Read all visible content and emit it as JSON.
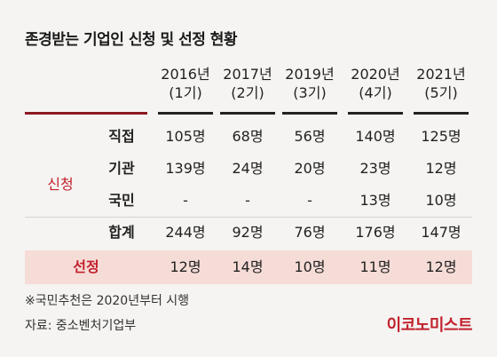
{
  "title": "존경받는 기업인 신청 및 선정 현황",
  "chart_data": {
    "type": "table",
    "columns": [
      {
        "year": "2016년",
        "round": "(1기)"
      },
      {
        "year": "2017년",
        "round": "(2기)"
      },
      {
        "year": "2019년",
        "round": "(3기)"
      },
      {
        "year": "2020년",
        "round": "(4기)"
      },
      {
        "year": "2021년",
        "round": "(5기)"
      }
    ],
    "group_label": "신청",
    "rows": [
      {
        "label": "직접",
        "values": [
          "105명",
          "68명",
          "56명",
          "140명",
          "125명"
        ]
      },
      {
        "label": "기관",
        "values": [
          "139명",
          "24명",
          "20명",
          "23명",
          "12명"
        ]
      },
      {
        "label": "국민",
        "values": [
          "-",
          "-",
          "-",
          "13명",
          "10명"
        ]
      },
      {
        "label": "합계",
        "values": [
          "244명",
          "92명",
          "76명",
          "176명",
          "147명"
        ]
      }
    ],
    "selected": {
      "label": "선정",
      "values": [
        "12명",
        "14명",
        "10명",
        "11명",
        "12명"
      ]
    },
    "colors": {
      "accent": "#c2202c",
      "highlight_band": "#f6dcd7",
      "rule": "#8a1a22"
    }
  },
  "note": "※국민추천은 2020년부터 시행",
  "source": "자료: 중소벤처기업부",
  "brand": "이코노미스트"
}
